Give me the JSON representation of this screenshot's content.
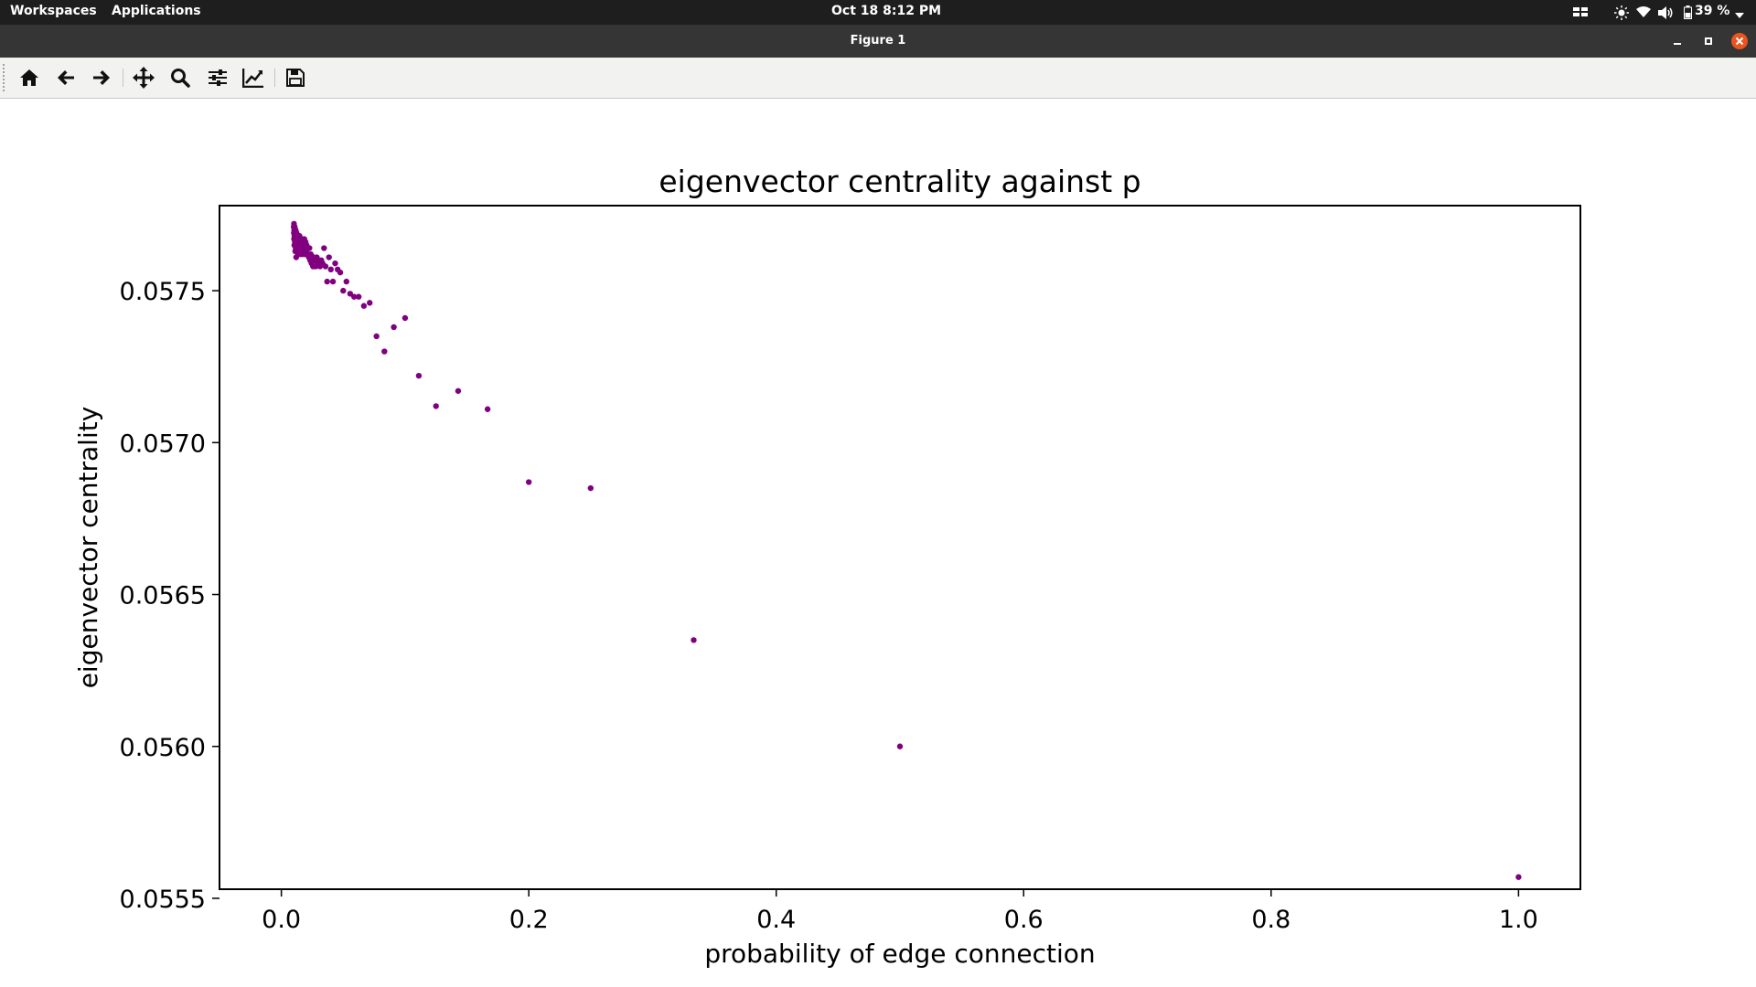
{
  "topbar": {
    "workspaces": "Workspaces",
    "applications": "Applications",
    "datetime": "Oct 18   8:12 PM",
    "battery": "39 %"
  },
  "window": {
    "title": "Figure 1"
  },
  "toolbar_icons": [
    "home-icon",
    "back-icon",
    "forward-icon",
    "pan-icon",
    "zoom-icon",
    "configure-subplots-icon",
    "edit-axis-icon",
    "save-icon"
  ],
  "chart_data": {
    "type": "scatter",
    "title": "eigenvector centrality against p",
    "xlabel": "probability of edge connection",
    "ylabel": "eigenvector centrality",
    "xlim": [
      -0.05,
      1.05
    ],
    "ylim": [
      0.05553,
      0.05778
    ],
    "xticks": [
      0.0,
      0.2,
      0.4,
      0.6,
      0.8,
      1.0
    ],
    "xtick_labels": [
      "0.0",
      "0.2",
      "0.4",
      "0.6",
      "0.8",
      "1.0"
    ],
    "yticks": [
      0.0555,
      0.056,
      0.0565,
      0.057,
      0.0575
    ],
    "ytick_labels": [
      "0.0555",
      "0.0560",
      "0.0565",
      "0.0570",
      "0.0575"
    ],
    "marker_color": "#800080",
    "x": [
      0.01,
      0.0101,
      0.0102,
      0.0103,
      0.0104,
      0.0105,
      0.0106,
      0.0108,
      0.0109,
      0.011,
      0.0112,
      0.0114,
      0.0115,
      0.0116,
      0.0118,
      0.012,
      0.0122,
      0.0123,
      0.0125,
      0.0127,
      0.0128,
      0.013,
      0.0133,
      0.0135,
      0.0137,
      0.014,
      0.0143,
      0.0145,
      0.0147,
      0.015,
      0.0152,
      0.0154,
      0.0156,
      0.0159,
      0.0161,
      0.0164,
      0.0167,
      0.0169,
      0.0172,
      0.0175,
      0.0179,
      0.0182,
      0.0185,
      0.0189,
      0.0192,
      0.0196,
      0.02,
      0.0204,
      0.0208,
      0.0213,
      0.0217,
      0.0222,
      0.0227,
      0.0233,
      0.0238,
      0.0244,
      0.025,
      0.0256,
      0.0263,
      0.027,
      0.0278,
      0.0286,
      0.0294,
      0.0303,
      0.0313,
      0.0323,
      0.0333,
      0.0345,
      0.0357,
      0.037,
      0.0385,
      0.04,
      0.0417,
      0.0435,
      0.0455,
      0.0476,
      0.05,
      0.0526,
      0.0556,
      0.0588,
      0.0625,
      0.0667,
      0.0714,
      0.0769,
      0.0833,
      0.0909,
      0.1,
      0.1111,
      0.125,
      0.1429,
      0.1667,
      0.2,
      0.25,
      0.3333,
      0.5,
      1.0
    ],
    "y": [
      0.05771,
      0.05769,
      0.05772,
      0.05767,
      0.0577,
      0.05765,
      0.05768,
      0.05771,
      0.05766,
      0.05769,
      0.05763,
      0.05767,
      0.0577,
      0.05764,
      0.05768,
      0.05761,
      0.05766,
      0.05769,
      0.05763,
      0.05767,
      0.05765,
      0.05768,
      0.05762,
      0.05766,
      0.05764,
      0.05767,
      0.05763,
      0.05765,
      0.05768,
      0.05762,
      0.05766,
      0.05764,
      0.05767,
      0.05763,
      0.05765,
      0.05767,
      0.05762,
      0.05766,
      0.05764,
      0.05766,
      0.05763,
      0.05765,
      0.05767,
      0.05762,
      0.05764,
      0.05766,
      0.05763,
      0.05765,
      0.05762,
      0.05764,
      0.05762,
      0.05761,
      0.05764,
      0.0576,
      0.05762,
      0.05759,
      0.05761,
      0.05758,
      0.05761,
      0.0576,
      0.05758,
      0.05761,
      0.05759,
      0.0576,
      0.05758,
      0.0576,
      0.05759,
      0.05764,
      0.05758,
      0.05753,
      0.05761,
      0.05757,
      0.05753,
      0.05759,
      0.05757,
      0.05756,
      0.0575,
      0.05753,
      0.05749,
      0.05748,
      0.05748,
      0.05745,
      0.05746,
      0.05735,
      0.0573,
      0.05738,
      0.05741,
      0.05722,
      0.05712,
      0.05717,
      0.05711,
      0.05687,
      0.05685,
      0.05635,
      0.056,
      0.05557
    ]
  }
}
